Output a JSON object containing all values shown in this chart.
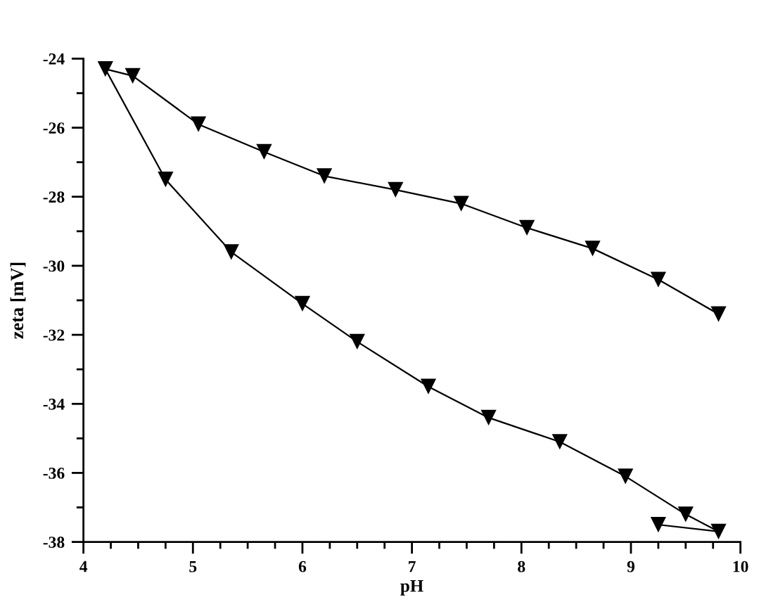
{
  "chart_data": {
    "type": "line",
    "xlabel": "pH",
    "ylabel": "zeta [mV]",
    "series": [
      {
        "color": "#000000",
        "x": [
          9.25,
          9.8,
          9.5,
          8.95,
          8.35,
          7.7,
          7.15,
          6.5,
          6.0,
          5.35,
          4.75,
          4.2,
          4.45,
          5.05,
          5.65,
          6.2,
          6.85,
          7.45,
          8.05,
          8.65,
          9.25,
          9.8
        ],
        "values": [
          -37.5,
          -37.7,
          -37.2,
          -36.1,
          -35.1,
          -34.4,
          -33.5,
          -32.2,
          -31.1,
          -29.6,
          -27.5,
          -24.3,
          -24.5,
          -25.9,
          -26.7,
          -27.4,
          -27.8,
          -28.2,
          -28.9,
          -29.5,
          -30.4,
          -31.4
        ]
      }
    ],
    "xlim": [
      4,
      10
    ],
    "ylim": [
      -38,
      -24
    ],
    "xticks": [
      4,
      {
        "value": 4.25,
        "label": null
      },
      {
        "value": 4.5,
        "label": null
      },
      {
        "value": 4.75,
        "label": null
      },
      5,
      {
        "value": 5.25,
        "label": null
      },
      {
        "value": 5.5,
        "label": null
      },
      {
        "value": 5.75,
        "label": null
      },
      6,
      {
        "value": 6.25,
        "label": null
      },
      {
        "value": 6.5,
        "label": null
      },
      {
        "value": 6.75,
        "label": null
      },
      7,
      {
        "value": 7.25,
        "label": null
      },
      {
        "value": 7.5,
        "label": null
      },
      {
        "value": 7.75,
        "label": null
      },
      8,
      {
        "value": 8.25,
        "label": null
      },
      {
        "value": 8.5,
        "label": null
      },
      {
        "value": 8.75,
        "label": null
      },
      9,
      {
        "value": 9.25,
        "label": null
      },
      {
        "value": 9.5,
        "label": null
      },
      {
        "value": 9.75,
        "label": null
      },
      10
    ],
    "yticks": [
      -38,
      {
        "value": -37,
        "label": null
      },
      -36,
      {
        "value": -35,
        "label": null
      },
      -34,
      {
        "value": -33,
        "label": null
      },
      -32,
      {
        "value": -31,
        "label": null
      },
      -30,
      {
        "value": -29,
        "label": null
      },
      -28,
      {
        "value": -27,
        "label": null
      },
      -26,
      {
        "value": -25,
        "label": null
      },
      -24
    ],
    "marker": "triangle",
    "line_style": "solid",
    "grid": false,
    "legend": false
  }
}
